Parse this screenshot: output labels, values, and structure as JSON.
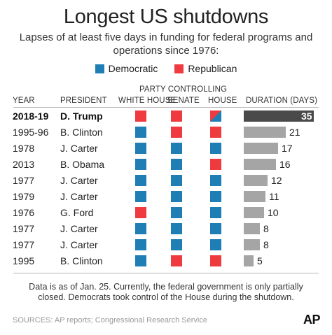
{
  "title": "Longest US shutdowns",
  "subtitle": "Lapses of at least five days in funding for federal programs and operations since 1976:",
  "legend": {
    "democratic": "Democratic",
    "republican": "Republican"
  },
  "colors": {
    "democratic": "#1f7fb4",
    "republican": "#ef3b3f",
    "bar_default": "#a5a5a5",
    "bar_highlight": "#4a4a4a"
  },
  "headers": {
    "year": "YEAR",
    "president": "PRESIDENT",
    "party_controlling": "PARTY CONTROLLING",
    "white_house": "WHITE HOUSE",
    "senate": "SENATE",
    "house": "HOUSE",
    "duration": "DURATION (DAYS)"
  },
  "note": "Data is as of Jan. 25. Currently, the federal government is only partially closed. Democrats took control of the House during the shutdown.",
  "sources": "SOURCES: AP reports; Congressional Research Service",
  "logo": "AP",
  "chart_data": {
    "type": "bar",
    "orientation": "horizontal",
    "categories": [
      "2018-19",
      "1995-96",
      "1978",
      "2013",
      "1977",
      "1979",
      "1976",
      "1977",
      "1977",
      "1995"
    ],
    "presidents": [
      "D. Trump",
      "B. Clinton",
      "J. Carter",
      "B. Obama",
      "J. Carter",
      "J. Carter",
      "G. Ford",
      "J. Carter",
      "J. Carter",
      "B. Clinton"
    ],
    "values": [
      35,
      21,
      17,
      16,
      12,
      11,
      10,
      8,
      8,
      5
    ],
    "xlim": [
      0,
      35
    ],
    "party_control": [
      {
        "white_house": "R",
        "senate": "R",
        "house": "R/D"
      },
      {
        "white_house": "D",
        "senate": "R",
        "house": "R"
      },
      {
        "white_house": "D",
        "senate": "D",
        "house": "D"
      },
      {
        "white_house": "D",
        "senate": "D",
        "house": "R"
      },
      {
        "white_house": "D",
        "senate": "D",
        "house": "D"
      },
      {
        "white_house": "D",
        "senate": "D",
        "house": "D"
      },
      {
        "white_house": "R",
        "senate": "D",
        "house": "D"
      },
      {
        "white_house": "D",
        "senate": "D",
        "house": "D"
      },
      {
        "white_house": "D",
        "senate": "D",
        "house": "D"
      },
      {
        "white_house": "D",
        "senate": "R",
        "house": "R"
      }
    ],
    "highlight_index": 0
  }
}
